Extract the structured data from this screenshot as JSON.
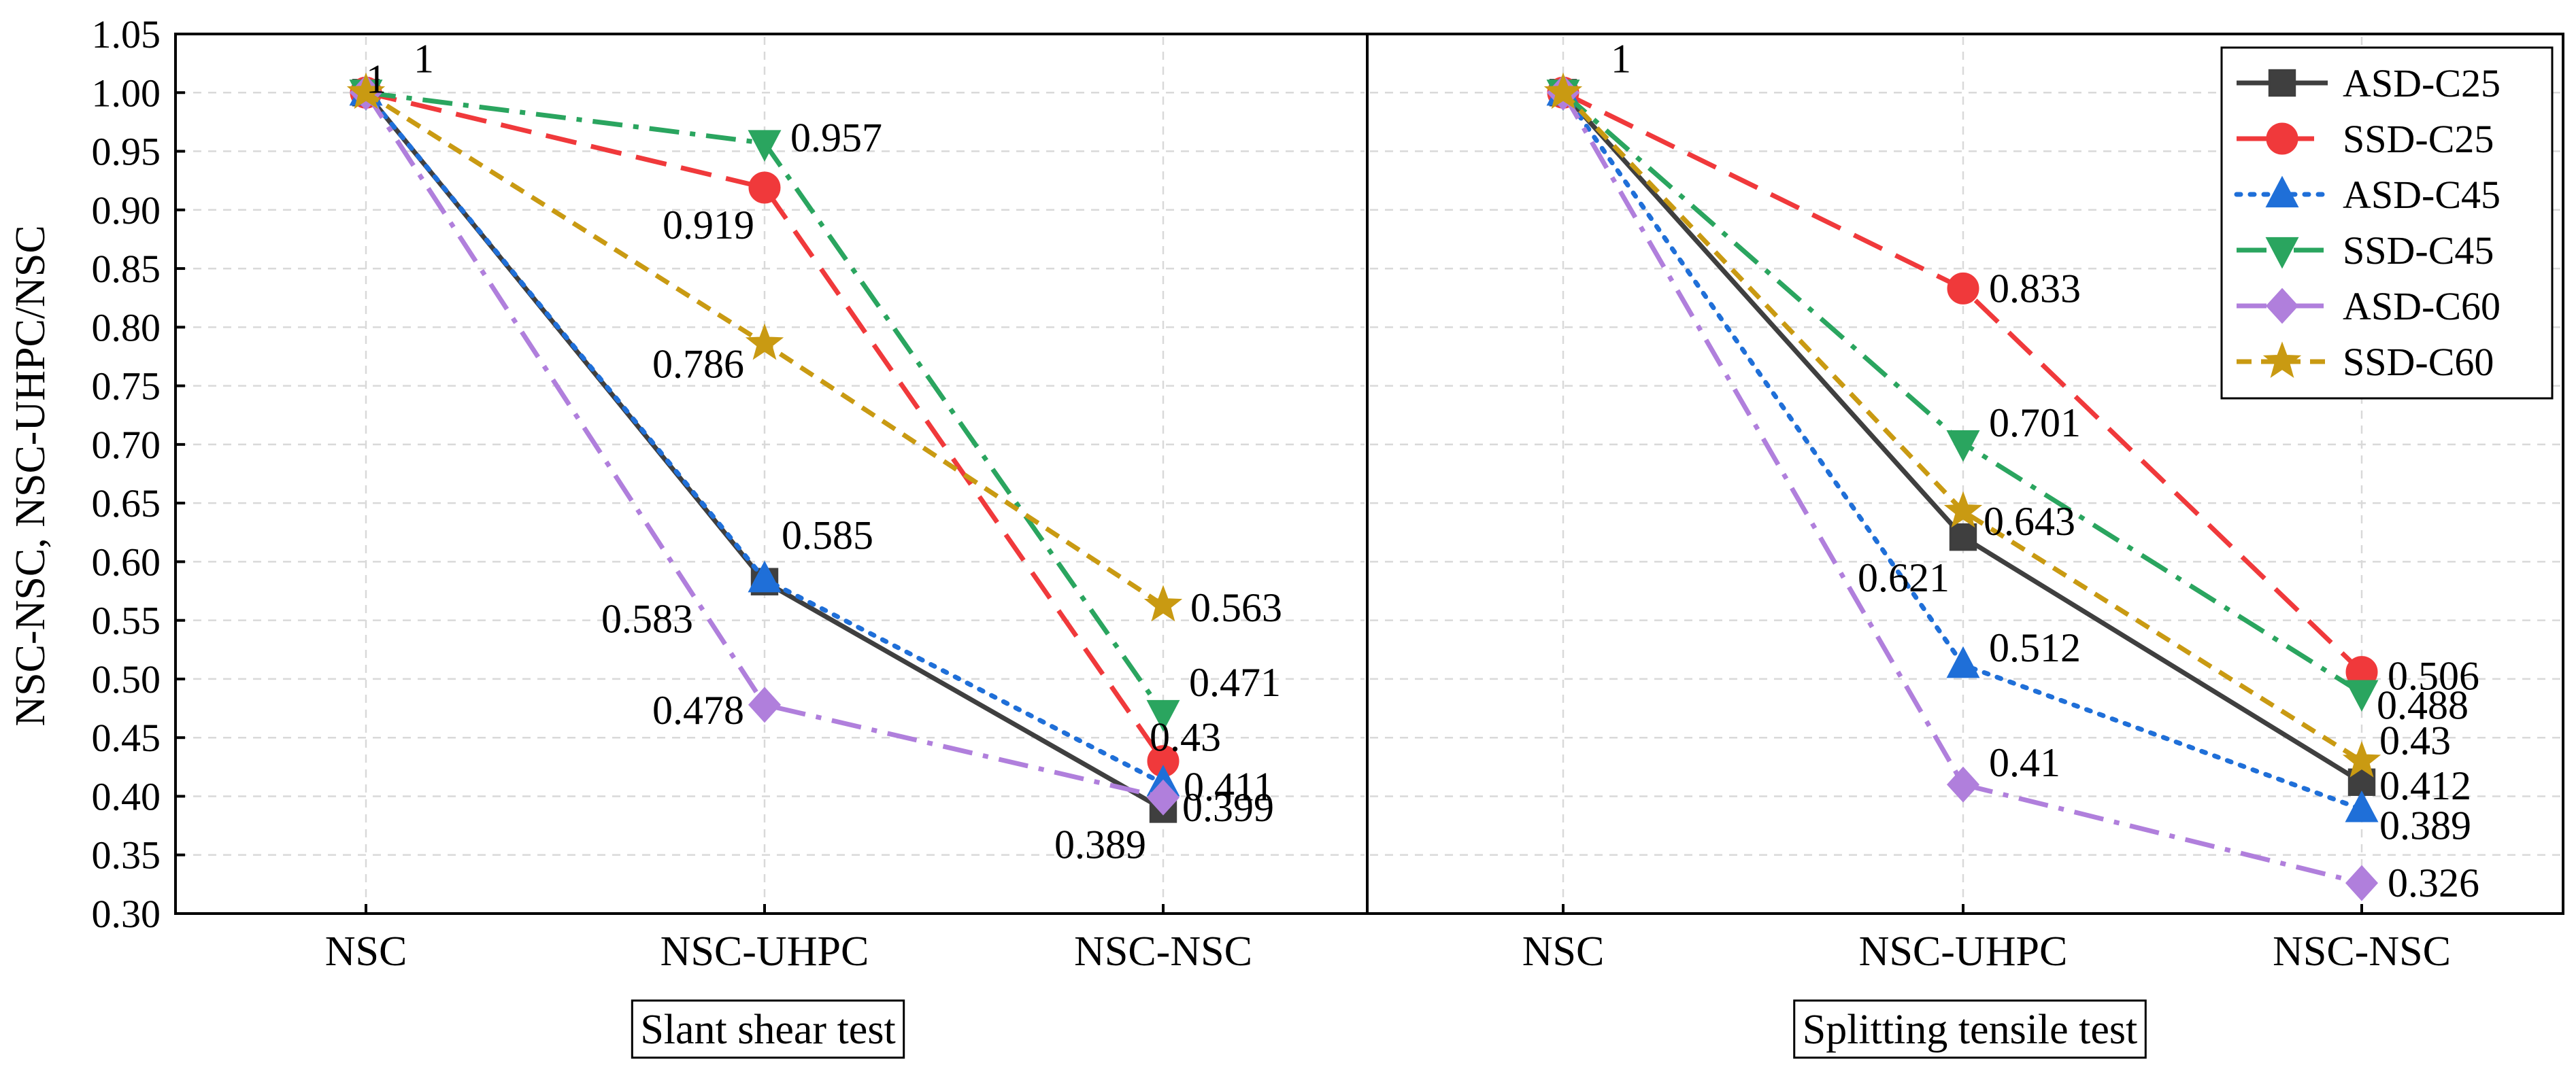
{
  "y_axis_label": "NSC-NSC, NSC-UHPC/NSC",
  "y_ticks": [
    "0.30",
    "0.35",
    "0.40",
    "0.45",
    "0.50",
    "0.55",
    "0.60",
    "0.65",
    "0.70",
    "0.75",
    "0.80",
    "0.85",
    "0.90",
    "0.95",
    "1.00",
    "1.05"
  ],
  "chart_data": [
    {
      "type": "line",
      "title": "Slant shear test",
      "categories": [
        "NSC",
        "NSC-UHPC",
        "NSC-NSC"
      ],
      "ylabel": "NSC-NSC, NSC-UHPC/NSC",
      "ylim": [
        0.3,
        1.05
      ],
      "grid": true,
      "series": [
        {
          "name": "ASD-C25",
          "values": [
            1,
            0.583,
            0.389
          ],
          "color": "#3f3f3f",
          "marker": "square",
          "dash": "solid"
        },
        {
          "name": "SSD-C25",
          "values": [
            1,
            0.919,
            0.43
          ],
          "color": "#f0393b",
          "marker": "circle",
          "dash": "dash"
        },
        {
          "name": "ASD-C45",
          "values": [
            1,
            0.585,
            0.411
          ],
          "color": "#1f6fd8",
          "marker": "triangle-up",
          "dash": "dot"
        },
        {
          "name": "SSD-C45",
          "values": [
            1,
            0.957,
            0.471
          ],
          "color": "#2aa55f",
          "marker": "triangle-down",
          "dash": "dashdot"
        },
        {
          "name": "ASD-C60",
          "values": [
            1,
            0.478,
            0.399
          ],
          "color": "#b07fdc",
          "marker": "diamond",
          "dash": "dashdot"
        },
        {
          "name": "SSD-C60",
          "values": [
            1,
            0.786,
            0.563
          ],
          "color": "#c99a12",
          "marker": "star",
          "dash": "shortdash"
        }
      ],
      "annotations": [
        "1",
        "0.957",
        "0.919",
        "0.786",
        "0.585",
        "0.583",
        "0.478",
        "0.563",
        "0.471",
        "0.43",
        "0.411",
        "0.399",
        "0.389"
      ]
    },
    {
      "type": "line",
      "title": "Splitting tensile test",
      "categories": [
        "NSC",
        "NSC-UHPC",
        "NSC-NSC"
      ],
      "ylabel": "NSC-NSC, NSC-UHPC/NSC",
      "ylim": [
        0.3,
        1.05
      ],
      "grid": true,
      "legend": "top-right",
      "series": [
        {
          "name": "ASD-C25",
          "values": [
            1,
            0.621,
            0.412
          ],
          "color": "#3f3f3f",
          "marker": "square",
          "dash": "solid"
        },
        {
          "name": "SSD-C25",
          "values": [
            1,
            0.833,
            0.506
          ],
          "color": "#f0393b",
          "marker": "circle",
          "dash": "dash"
        },
        {
          "name": "ASD-C45",
          "values": [
            1,
            0.512,
            0.389
          ],
          "color": "#1f6fd8",
          "marker": "triangle-up",
          "dash": "dot"
        },
        {
          "name": "SSD-C45",
          "values": [
            1,
            0.701,
            0.488
          ],
          "color": "#2aa55f",
          "marker": "triangle-down",
          "dash": "dashdot"
        },
        {
          "name": "ASD-C60",
          "values": [
            1,
            0.41,
            0.326
          ],
          "color": "#b07fdc",
          "marker": "diamond",
          "dash": "dashdot"
        },
        {
          "name": "SSD-C60",
          "values": [
            1,
            0.643,
            0.43
          ],
          "color": "#c99a12",
          "marker": "star",
          "dash": "shortdash"
        }
      ],
      "annotations": [
        "1",
        "0.833",
        "0.701",
        "0.643",
        "0.621",
        "0.512",
        "0.41",
        "0.506",
        "0.488",
        "0.43",
        "0.412",
        "0.389",
        "0.326"
      ]
    }
  ]
}
